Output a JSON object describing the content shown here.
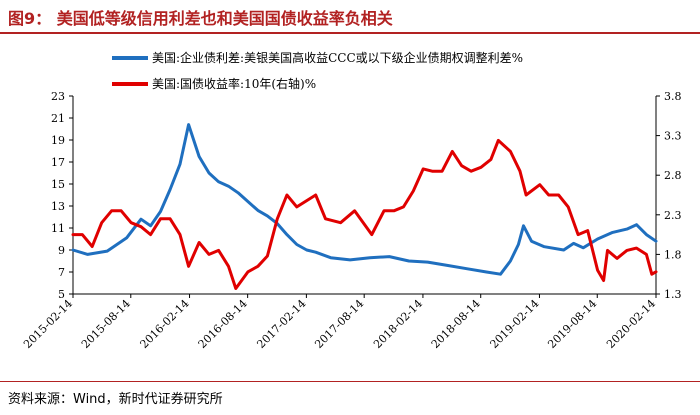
{
  "header": {
    "title": "图9：  美国低等级信用利差也和美国国债收益率负相关"
  },
  "footer": {
    "source": "资料来源：Wind，新时代证券研究所"
  },
  "chart_data": {
    "type": "line",
    "title": "美国低等级信用利差也和美国国债收益率负相关",
    "x_ticks": [
      "2015-02-14",
      "2015-08-14",
      "2016-02-14",
      "2016-08-14",
      "2017-02-14",
      "2017-08-14",
      "2018-02-14",
      "2018-08-14",
      "2019-02-14",
      "2019-08-14",
      "2020-02-14"
    ],
    "x_range": [
      "2015-02-14",
      "2020-02-14"
    ],
    "y_left": {
      "range": [
        5,
        23
      ],
      "ticks": [
        5,
        7,
        9,
        11,
        13,
        15,
        17,
        19,
        21,
        23
      ]
    },
    "y_right": {
      "range": [
        1.3,
        3.8
      ],
      "ticks": [
        "1.3",
        "1.8",
        "2.3",
        "2.8",
        "3.3",
        "3.8"
      ]
    },
    "grid": false,
    "legend_position": "top",
    "series": [
      {
        "name": "美国:企业债利差:美银美国高收益CCC或以下级企业债期权调整利差%",
        "axis": "left",
        "color": "#1f6fbf",
        "points": [
          [
            "2015-02-14",
            9.0
          ],
          [
            "2015-04-01",
            8.6
          ],
          [
            "2015-06-01",
            8.9
          ],
          [
            "2015-08-01",
            10.1
          ],
          [
            "2015-09-15",
            11.8
          ],
          [
            "2015-10-15",
            11.2
          ],
          [
            "2015-11-15",
            12.5
          ],
          [
            "2015-12-15",
            14.5
          ],
          [
            "2016-01-15",
            16.8
          ],
          [
            "2016-02-11",
            20.4
          ],
          [
            "2016-03-15",
            17.5
          ],
          [
            "2016-04-15",
            16.0
          ],
          [
            "2016-05-15",
            15.2
          ],
          [
            "2016-06-15",
            14.8
          ],
          [
            "2016-07-15",
            14.2
          ],
          [
            "2016-08-15",
            13.4
          ],
          [
            "2016-09-15",
            12.6
          ],
          [
            "2016-10-15",
            12.1
          ],
          [
            "2016-11-15",
            11.4
          ],
          [
            "2016-12-15",
            10.4
          ],
          [
            "2017-01-15",
            9.5
          ],
          [
            "2017-02-15",
            9.0
          ],
          [
            "2017-03-15",
            8.8
          ],
          [
            "2017-05-01",
            8.3
          ],
          [
            "2017-07-01",
            8.1
          ],
          [
            "2017-09-01",
            8.3
          ],
          [
            "2017-11-01",
            8.4
          ],
          [
            "2018-01-01",
            8.0
          ],
          [
            "2018-03-01",
            7.9
          ],
          [
            "2018-05-01",
            7.6
          ],
          [
            "2018-07-01",
            7.3
          ],
          [
            "2018-09-01",
            7.0
          ],
          [
            "2018-10-15",
            6.8
          ],
          [
            "2018-11-15",
            8.0
          ],
          [
            "2018-12-10",
            9.5
          ],
          [
            "2018-12-26",
            11.2
          ],
          [
            "2019-01-20",
            9.8
          ],
          [
            "2019-03-01",
            9.3
          ],
          [
            "2019-05-01",
            9.0
          ],
          [
            "2019-06-01",
            9.6
          ],
          [
            "2019-07-01",
            9.2
          ],
          [
            "2019-08-15",
            10.0
          ],
          [
            "2019-10-01",
            10.6
          ],
          [
            "2019-11-15",
            10.9
          ],
          [
            "2019-12-15",
            11.3
          ],
          [
            "2020-01-15",
            10.4
          ],
          [
            "2020-02-14",
            9.8
          ]
        ]
      },
      {
        "name": "美国:国债收益率:10年(右轴)%",
        "axis": "right",
        "color": "#e00000",
        "points": [
          [
            "2015-02-14",
            2.05
          ],
          [
            "2015-03-15",
            2.05
          ],
          [
            "2015-04-15",
            1.9
          ],
          [
            "2015-05-15",
            2.2
          ],
          [
            "2015-06-15",
            2.35
          ],
          [
            "2015-07-15",
            2.35
          ],
          [
            "2015-08-15",
            2.2
          ],
          [
            "2015-09-15",
            2.15
          ],
          [
            "2015-10-15",
            2.05
          ],
          [
            "2015-11-15",
            2.25
          ],
          [
            "2015-12-15",
            2.25
          ],
          [
            "2016-01-15",
            2.05
          ],
          [
            "2016-02-11",
            1.65
          ],
          [
            "2016-03-15",
            1.95
          ],
          [
            "2016-04-15",
            1.8
          ],
          [
            "2016-05-15",
            1.85
          ],
          [
            "2016-06-15",
            1.65
          ],
          [
            "2016-07-08",
            1.37
          ],
          [
            "2016-08-15",
            1.58
          ],
          [
            "2016-09-15",
            1.65
          ],
          [
            "2016-10-15",
            1.78
          ],
          [
            "2016-11-15",
            2.25
          ],
          [
            "2016-12-15",
            2.55
          ],
          [
            "2017-01-15",
            2.4
          ],
          [
            "2017-03-15",
            2.55
          ],
          [
            "2017-04-15",
            2.25
          ],
          [
            "2017-06-01",
            2.2
          ],
          [
            "2017-07-15",
            2.35
          ],
          [
            "2017-09-07",
            2.05
          ],
          [
            "2017-10-15",
            2.35
          ],
          [
            "2017-11-15",
            2.35
          ],
          [
            "2017-12-15",
            2.4
          ],
          [
            "2018-01-15",
            2.6
          ],
          [
            "2018-02-15",
            2.88
          ],
          [
            "2018-03-15",
            2.85
          ],
          [
            "2018-04-15",
            2.85
          ],
          [
            "2018-05-17",
            3.1
          ],
          [
            "2018-06-15",
            2.92
          ],
          [
            "2018-07-15",
            2.85
          ],
          [
            "2018-08-15",
            2.9
          ],
          [
            "2018-09-15",
            3.0
          ],
          [
            "2018-10-08",
            3.24
          ],
          [
            "2018-11-15",
            3.1
          ],
          [
            "2018-12-15",
            2.85
          ],
          [
            "2019-01-03",
            2.55
          ],
          [
            "2019-02-15",
            2.68
          ],
          [
            "2019-03-15",
            2.55
          ],
          [
            "2019-04-15",
            2.55
          ],
          [
            "2019-05-15",
            2.4
          ],
          [
            "2019-06-15",
            2.05
          ],
          [
            "2019-07-15",
            2.1
          ],
          [
            "2019-08-15",
            1.6
          ],
          [
            "2019-09-03",
            1.47
          ],
          [
            "2019-09-15",
            1.85
          ],
          [
            "2019-10-15",
            1.75
          ],
          [
            "2019-11-15",
            1.85
          ],
          [
            "2019-12-15",
            1.88
          ],
          [
            "2020-01-15",
            1.8
          ],
          [
            "2020-02-01",
            1.55
          ],
          [
            "2020-02-14",
            1.58
          ]
        ]
      }
    ]
  }
}
